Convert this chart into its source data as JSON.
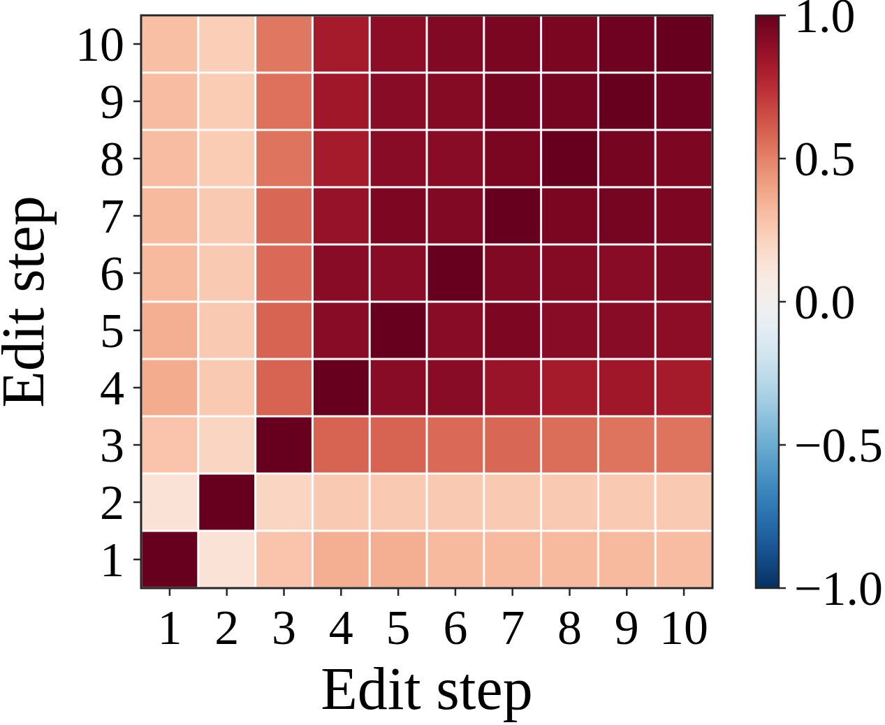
{
  "chart_data": {
    "type": "heatmap",
    "xlabel": "Edit step",
    "ylabel": "Edit step",
    "categories": [
      "1",
      "2",
      "3",
      "4",
      "5",
      "6",
      "7",
      "8",
      "9",
      "10"
    ],
    "y_categories": [
      "10",
      "9",
      "8",
      "7",
      "6",
      "5",
      "4",
      "3",
      "2",
      "1"
    ],
    "cells": [
      [
        0.3,
        0.24,
        0.53,
        0.82,
        0.9,
        0.93,
        0.95,
        0.95,
        0.98,
        1.0
      ],
      [
        0.31,
        0.25,
        0.55,
        0.84,
        0.91,
        0.92,
        0.96,
        0.96,
        1.0,
        0.98
      ],
      [
        0.31,
        0.25,
        0.54,
        0.82,
        0.91,
        0.91,
        0.95,
        1.0,
        0.96,
        0.94
      ],
      [
        0.32,
        0.26,
        0.58,
        0.87,
        0.94,
        0.93,
        1.0,
        0.95,
        0.96,
        0.94
      ],
      [
        0.32,
        0.26,
        0.57,
        0.91,
        0.91,
        1.0,
        0.93,
        0.92,
        0.91,
        0.93
      ],
      [
        0.36,
        0.26,
        0.59,
        0.91,
        1.0,
        0.91,
        0.94,
        0.91,
        0.91,
        0.9
      ],
      [
        0.37,
        0.26,
        0.59,
        1.0,
        0.91,
        0.91,
        0.86,
        0.82,
        0.84,
        0.82
      ],
      [
        0.28,
        0.21,
        1.0,
        0.59,
        0.59,
        0.57,
        0.58,
        0.56,
        0.54,
        0.54
      ],
      [
        0.13,
        1.0,
        0.21,
        0.26,
        0.26,
        0.26,
        0.26,
        0.26,
        0.26,
        0.26
      ],
      [
        1.0,
        0.13,
        0.28,
        0.36,
        0.36,
        0.32,
        0.32,
        0.32,
        0.32,
        0.31
      ]
    ],
    "clim": [
      -1,
      1
    ],
    "cticks": [
      {
        "value": 1,
        "label": "1.0"
      },
      {
        "value": 0.5,
        "label": "0.5"
      },
      {
        "value": 0,
        "label": "0.0"
      },
      {
        "value": -0.5,
        "label": "−0.5"
      },
      {
        "value": -1,
        "label": "−1.0"
      }
    ]
  }
}
